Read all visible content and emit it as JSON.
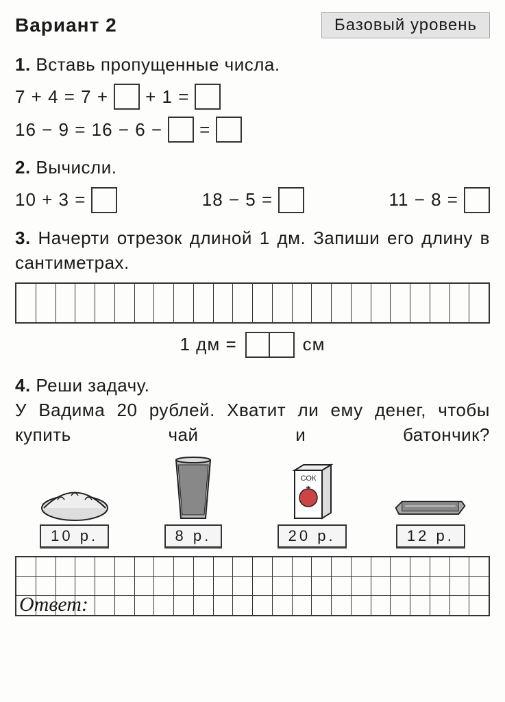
{
  "header": {
    "variant": "Вариант 2",
    "level": "Базовый уровень"
  },
  "task1": {
    "num": "1.",
    "title": "Вставь пропущенные числа.",
    "eq1a": "7 + 4 = 7 +",
    "eq1b": "+ 1 =",
    "eq2a": "16 − 9 = 16 − 6 −",
    "eq2b": "="
  },
  "task2": {
    "num": "2.",
    "title": "Вычисли.",
    "e1": "10 + 3 =",
    "e2": "18 − 5 =",
    "e3": "11 − 8 ="
  },
  "task3": {
    "num": "3.",
    "title": "Начерти отрезок длиной 1 дм. Запиши его длину в сантиметрах.",
    "dm_left": "1 дм =",
    "dm_right": "см",
    "grid_cols": 24
  },
  "task4": {
    "num": "4.",
    "title": "Реши задачу.",
    "body": "У Вадима 20 рублей. Хватит ли ему де­нег, чтобы купить чай и батончик?",
    "items": [
      {
        "name": "bread",
        "price": "10 р."
      },
      {
        "name": "tea",
        "price": "8 р."
      },
      {
        "name": "juice",
        "label": "СОК",
        "price": "20 р."
      },
      {
        "name": "bar",
        "price": "12 р."
      }
    ],
    "answer_label": "Ответ:",
    "answer_grid": {
      "rows": 3,
      "cols": 24
    }
  },
  "colors": {
    "text": "#1a1a1a",
    "background": "#fdfdfc",
    "badge_bg": "#e4e4e4",
    "border": "#333333"
  }
}
